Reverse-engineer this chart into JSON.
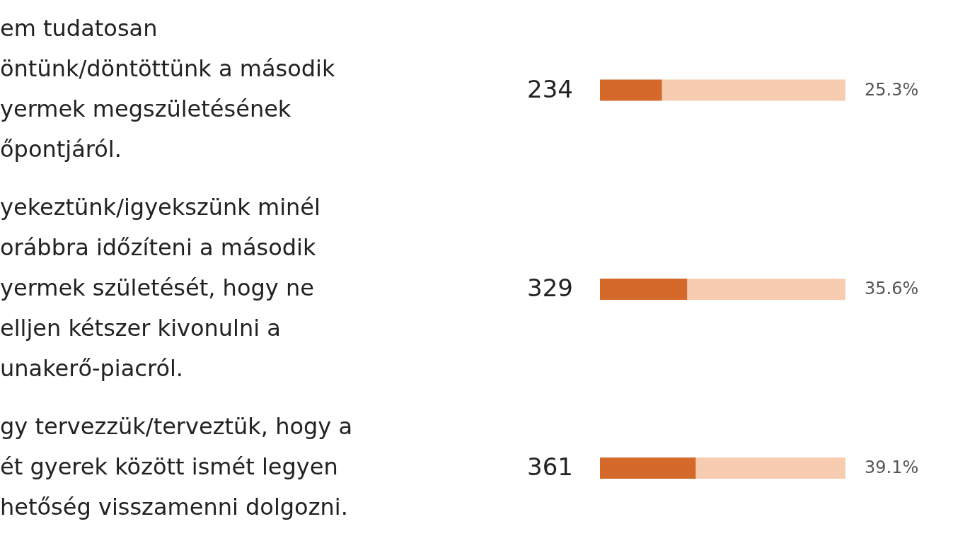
{
  "chart_data": {
    "type": "bar",
    "orientation": "horizontal",
    "stacked": true,
    "categories": [
      "em tudatosan\nöntünk/döntöttünk a második\nyermek megszületésének\nőpontjáról.",
      "yekeztünk/igyekszünk minél\norábbra időzíteni a második\nyermek születését, hogy ne\nelljen kétszer kivonulni a\nunakerő-piacról.",
      "gy tervezzük/terveztük, hogy a\nét gyerek között ismét legyen\nhetőség visszamenni dolgozni."
    ],
    "series": [
      {
        "color": "#d5692a",
        "values": [
          25.3,
          35.6,
          39.1
        ],
        "value_labels": [
          "25.3%",
          "35.6%",
          "39.1%"
        ]
      },
      {
        "color": "#f8ccb0",
        "values": [
          74.7,
          64.4,
          60.9
        ]
      }
    ],
    "annotations": [
      "234",
      "329",
      "361"
    ],
    "tick_labels": "y"
  }
}
